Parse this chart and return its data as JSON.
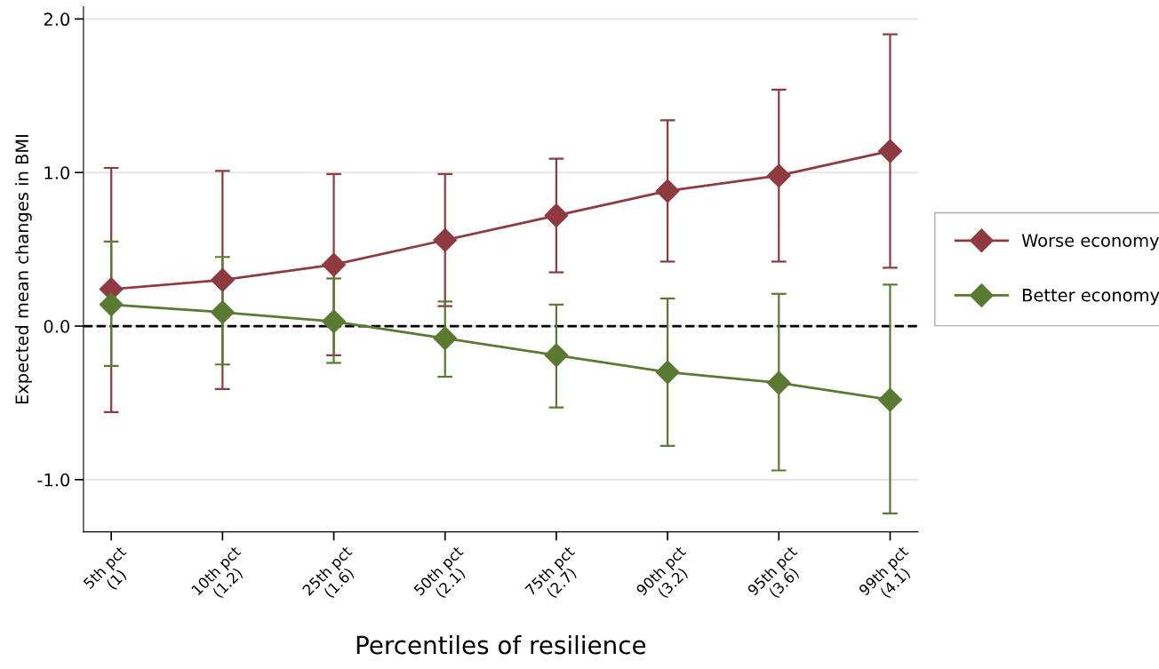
{
  "chart_data": {
    "type": "line",
    "xlabel": "Percentiles of resilience",
    "ylabel": "Expected mean changes in BMI",
    "categories": [
      "5th pct\n(1)",
      "10th pct\n(1.2)",
      "25th pct\n(1.6)",
      "50th pct\n(2.1)",
      "75th pct\n(2.7)",
      "90th pct\n(3.2)",
      "95th pct\n(3.6)",
      "99th pct\n(4.1)"
    ],
    "ylim": [
      -1.34,
      2.08
    ],
    "yticks": [
      {
        "value": -1.0,
        "label": "-1.0"
      },
      {
        "value": 0.0,
        "label": "0.0"
      },
      {
        "value": 1.0,
        "label": "1.0"
      },
      {
        "value": 2.0,
        "label": "2.0"
      }
    ],
    "series": [
      {
        "name": "Worse economy",
        "color": "#8e3a3f",
        "values": [
          0.24,
          0.3,
          0.4,
          0.56,
          0.72,
          0.88,
          0.98,
          1.14
        ],
        "errors": [
          [
            -0.56,
            1.03
          ],
          [
            -0.41,
            1.01
          ],
          [
            -0.19,
            0.99
          ],
          [
            0.13,
            0.99
          ],
          [
            0.35,
            1.09
          ],
          [
            0.42,
            1.34
          ],
          [
            0.42,
            1.54
          ],
          [
            0.38,
            1.9
          ]
        ]
      },
      {
        "name": "Better economy",
        "color": "#5a7a32",
        "values": [
          0.14,
          0.09,
          0.03,
          -0.08,
          -0.19,
          -0.3,
          -0.37,
          -0.48
        ],
        "errors": [
          [
            -0.26,
            0.55
          ],
          [
            -0.25,
            0.45
          ],
          [
            -0.24,
            0.31
          ],
          [
            -0.33,
            0.16
          ],
          [
            -0.53,
            0.14
          ],
          [
            -0.78,
            0.18
          ],
          [
            -0.94,
            0.21
          ],
          [
            -1.22,
            0.27
          ]
        ]
      }
    ],
    "ref_lines": [
      {
        "axis": "y",
        "value": 0.0,
        "label": null,
        "color": "#000000",
        "line_style": "dashed"
      }
    ],
    "grid": "y",
    "legend": "right",
    "marker": "diamond",
    "line_style": "solid"
  }
}
